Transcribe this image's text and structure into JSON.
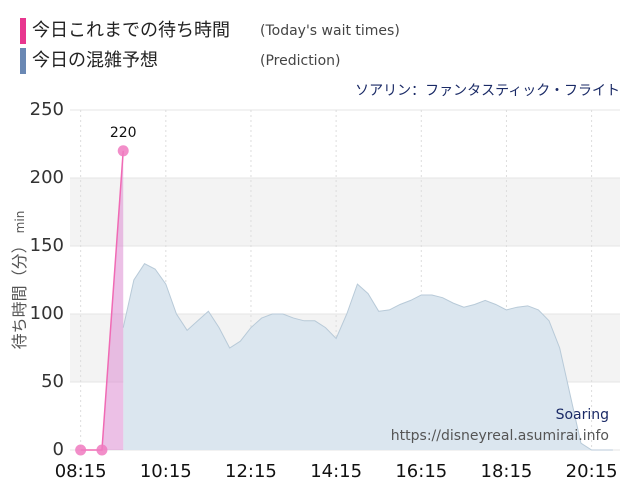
{
  "chart_data": {
    "type": "area",
    "title": "ソアリン：ファンタスティック・フライト",
    "ylabel": "待ち時間（分）",
    "ylabel_unit": "min",
    "annotations": [
      "Soaring",
      "https://disneyreal.asumirai.info"
    ],
    "xlim": [
      480,
      1255
    ],
    "xticks": [
      {
        "value": 495,
        "label": "08:15"
      },
      {
        "value": 615,
        "label": "10:15"
      },
      {
        "value": 735,
        "label": "12:15"
      },
      {
        "value": 855,
        "label": "14:15"
      },
      {
        "value": 975,
        "label": "16:15"
      },
      {
        "value": 1095,
        "label": "18:15"
      },
      {
        "value": 1215,
        "label": "20:15"
      }
    ],
    "ylim": [
      0,
      250
    ],
    "yticks": [
      0,
      50,
      100,
      150,
      200,
      250
    ],
    "grid": true,
    "series": [
      {
        "name": "今日これまでの待ち時間",
        "note": "(Today's wait times)",
        "color": "#f06ab4",
        "legend_color": "#e8368f",
        "x": [
          495,
          525,
          555
        ],
        "values": [
          0,
          0,
          220
        ]
      },
      {
        "name": "今日の混雑予想",
        "note": "(Prediction)",
        "color": "#b8cad8",
        "legend_color": "#6a88b4",
        "x": [
          555,
          570,
          585,
          600,
          615,
          630,
          645,
          660,
          675,
          690,
          705,
          720,
          735,
          750,
          765,
          780,
          795,
          810,
          825,
          840,
          855,
          870,
          885,
          900,
          915,
          930,
          945,
          960,
          975,
          990,
          1005,
          1020,
          1035,
          1050,
          1065,
          1080,
          1095,
          1110,
          1125,
          1140,
          1155,
          1170,
          1185,
          1200,
          1215,
          1230,
          1245
        ],
        "values": [
          90,
          125,
          137,
          133,
          122,
          100,
          88,
          95,
          102,
          90,
          75,
          80,
          90,
          97,
          100,
          100,
          97,
          95,
          95,
          90,
          82,
          100,
          122,
          115,
          102,
          103,
          107,
          110,
          114,
          114,
          112,
          108,
          105,
          107,
          110,
          107,
          103,
          105,
          106,
          103,
          95,
          75,
          40,
          5,
          0,
          0,
          0
        ]
      }
    ]
  }
}
